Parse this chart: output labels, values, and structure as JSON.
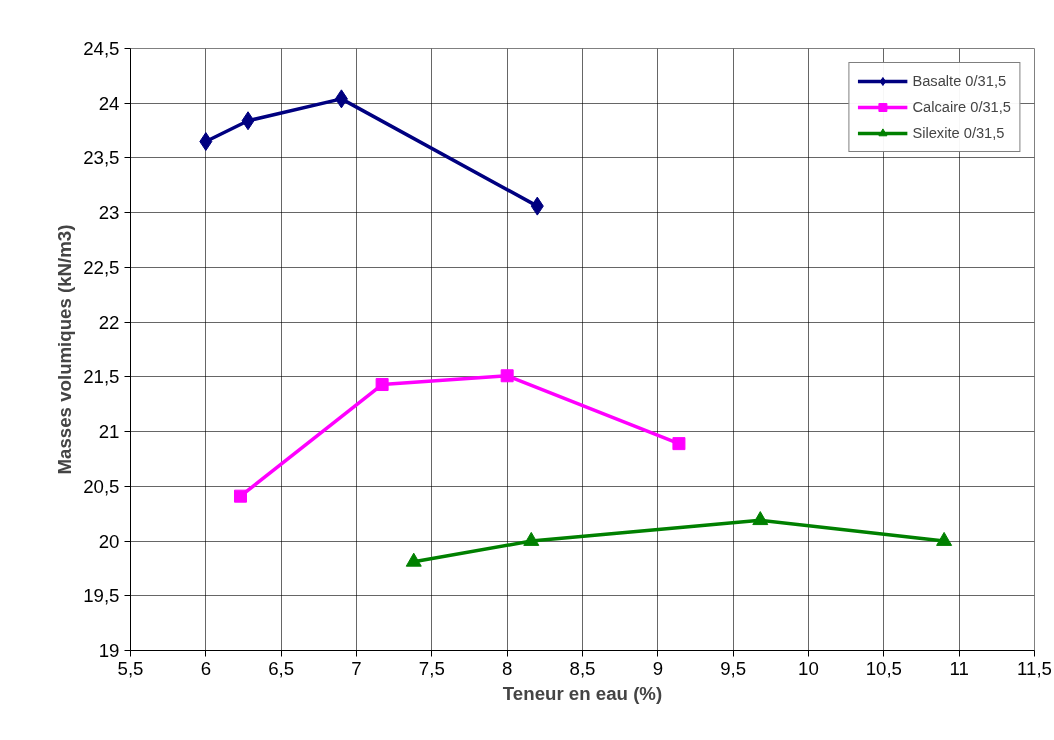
{
  "chart_data": {
    "type": "line",
    "xlabel": "Teneur en eau (%)",
    "ylabel": "Masses volumiques (kN/m3)",
    "series": [
      {
        "name": "Basalte 0/31,5",
        "color": "#000080",
        "marker": "diamond",
        "x": [
          6.0,
          6.28,
          6.9,
          8.2
        ],
        "values": [
          23.65,
          23.84,
          24.04,
          23.06
        ]
      },
      {
        "name": "Calcaire 0/31,5",
        "color": "#ff00ff",
        "marker": "square",
        "x": [
          6.23,
          7.17,
          8.0,
          9.14
        ],
        "values": [
          20.41,
          21.43,
          21.51,
          20.89
        ]
      },
      {
        "name": "Silexite 0/31,5",
        "color": "#008000",
        "marker": "triangle",
        "x": [
          7.38,
          8.16,
          9.68,
          10.9
        ],
        "values": [
          19.81,
          20.0,
          20.19,
          20.0
        ]
      }
    ],
    "xlim": [
      5.5,
      11.5
    ],
    "xticks": [
      {
        "value": 5.5,
        "label": "5,5"
      },
      6,
      {
        "value": 6.5,
        "label": "6,5"
      },
      7,
      {
        "value": 7.5,
        "label": "7,5"
      },
      8,
      {
        "value": 8.5,
        "label": "8,5"
      },
      9,
      {
        "value": 9.5,
        "label": "9,5"
      },
      10,
      {
        "value": 10.5,
        "label": "10,5"
      },
      11,
      {
        "value": 11.5,
        "label": "11,5"
      }
    ],
    "ylim": [
      19,
      24.5
    ],
    "yticks": [
      19,
      {
        "value": 19.5,
        "label": "19,5"
      },
      20,
      {
        "value": 20.5,
        "label": "20,5"
      },
      21,
      {
        "value": 21.5,
        "label": "21,5"
      },
      22,
      {
        "value": 22.5,
        "label": "22,5"
      },
      23,
      {
        "value": 23.5,
        "label": "23,5"
      },
      24,
      {
        "value": 24.5,
        "label": "24,5"
      }
    ],
    "grid": true,
    "legend": "top right",
    "line_style": "solid"
  }
}
